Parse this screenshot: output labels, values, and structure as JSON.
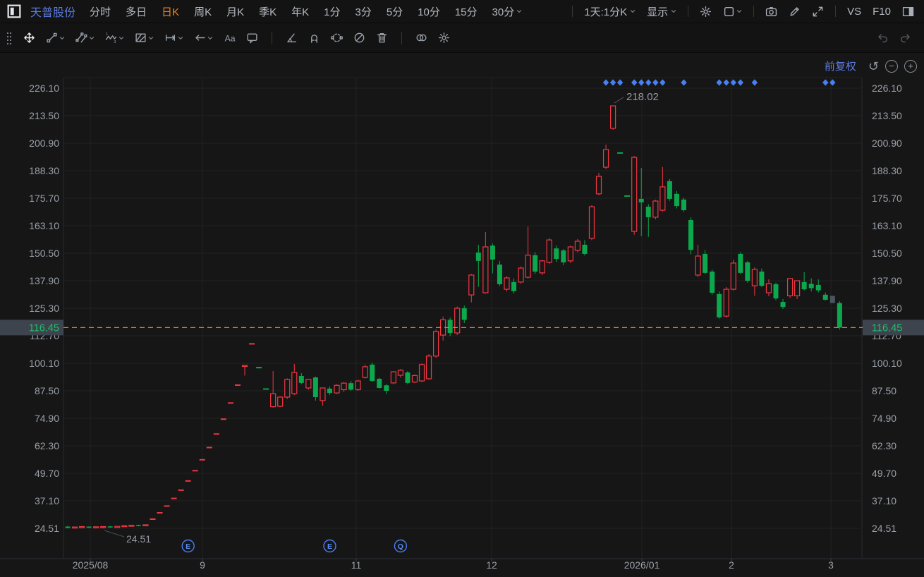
{
  "header": {
    "stock_name": "天普股份",
    "tabs": [
      {
        "label": "分时"
      },
      {
        "label": "多日"
      },
      {
        "label": "日K",
        "active": true
      },
      {
        "label": "周K"
      },
      {
        "label": "月K"
      },
      {
        "label": "季K"
      },
      {
        "label": "年K"
      },
      {
        "label": "1分"
      },
      {
        "label": "3分"
      },
      {
        "label": "5分"
      },
      {
        "label": "10分"
      },
      {
        "label": "15分"
      },
      {
        "label": "30分",
        "chevron": true
      }
    ],
    "right_controls": [
      {
        "type": "divider"
      },
      {
        "type": "text",
        "label": "1天:1分K",
        "chevron": true,
        "name": "interval-selector"
      },
      {
        "type": "text",
        "label": "显示",
        "chevron": true,
        "name": "display-menu"
      },
      {
        "type": "divider"
      },
      {
        "type": "icon",
        "icon": "gear",
        "name": "settings-icon"
      },
      {
        "type": "icon",
        "icon": "layout",
        "chevron": true,
        "name": "layout-icon"
      },
      {
        "type": "divider"
      },
      {
        "type": "icon",
        "icon": "camera",
        "name": "screenshot-icon"
      },
      {
        "type": "icon",
        "icon": "pencil",
        "name": "edit-icon"
      },
      {
        "type": "icon",
        "icon": "expand",
        "name": "fullscreen-icon"
      },
      {
        "type": "divider"
      },
      {
        "type": "text",
        "label": "VS",
        "name": "vs-button"
      },
      {
        "type": "text",
        "label": "F10",
        "name": "f10-button"
      },
      {
        "type": "icon",
        "icon": "panel-right",
        "name": "right-panel-toggle-icon"
      }
    ]
  },
  "drawing_toolbar": {
    "tools": [
      {
        "icon": "grip",
        "name": "toolbar-grip"
      },
      {
        "icon": "move",
        "name": "move-tool",
        "active": true
      },
      {
        "icon": "line",
        "name": "trend-line-tool",
        "chevron": true
      },
      {
        "icon": "channel",
        "name": "channel-tool",
        "chevron": true
      },
      {
        "icon": "wave",
        "name": "wave-tool",
        "chevron": true
      },
      {
        "icon": "pattern",
        "name": "pattern-tool",
        "chevron": true
      },
      {
        "icon": "ruler",
        "name": "measure-tool",
        "chevron": true
      },
      {
        "icon": "arrow",
        "name": "arrow-tool",
        "chevron": true
      },
      {
        "icon": "text",
        "name": "text-tool"
      },
      {
        "icon": "comment",
        "name": "comment-tool"
      },
      {
        "type": "divider"
      },
      {
        "icon": "angle",
        "name": "angle-tool"
      },
      {
        "icon": "magnet",
        "name": "magnet-tool"
      },
      {
        "icon": "select",
        "name": "selection-tool"
      },
      {
        "icon": "hide",
        "name": "hide-drawings-tool"
      },
      {
        "icon": "trash",
        "name": "delete-drawings-tool"
      },
      {
        "type": "divider"
      },
      {
        "icon": "compare",
        "name": "compare-tool"
      },
      {
        "icon": "gear",
        "name": "drawing-settings-tool"
      },
      {
        "type": "spacer"
      },
      {
        "icon": "undo",
        "name": "undo-icon",
        "disabled": true
      },
      {
        "icon": "redo",
        "name": "redo-icon",
        "disabled": true
      }
    ]
  },
  "chart": {
    "adjust_label": "前复权"
  },
  "colors": {
    "up": "#f23742",
    "down": "#0ba84e",
    "neutral": "#4b545f",
    "price_line": "#f57b20",
    "badge_bg": "#3d444e",
    "badge_text": "#21c06a",
    "accent_blue": "#5b7ce2",
    "active_tab": "#ff8000",
    "marker_blue": "#4880f2",
    "axis_text": "#9aa0a8",
    "grid": "#212121",
    "annotation": "#949aa2"
  },
  "chart_data": {
    "type": "candlestick",
    "title": "天普股份 日K 前复权",
    "current_price": 116.45,
    "current_price_label": "116.45",
    "high_annotation": "218.02",
    "low_annotation": "24.51",
    "y_ticks": [
      "226.10",
      "213.50",
      "200.90",
      "188.30",
      "175.70",
      "163.10",
      "150.50",
      "137.90",
      "125.30",
      "112.70",
      "100.10",
      "87.50",
      "74.90",
      "62.30",
      "49.70",
      "37.10",
      "24.51"
    ],
    "price_top": 226.1,
    "price_step": 12.6,
    "x_ticks": [
      {
        "label": "2025/08",
        "x": 128
      },
      {
        "label": "9",
        "x": 287
      },
      {
        "label": "11",
        "x": 505
      },
      {
        "label": "12",
        "x": 697
      },
      {
        "label": "2026/01",
        "x": 910
      },
      {
        "label": "2",
        "x": 1037
      },
      {
        "label": "3",
        "x": 1178
      }
    ],
    "event_markers": [
      {
        "index": 17,
        "label": "E"
      },
      {
        "index": 37,
        "label": "E"
      },
      {
        "index": 47,
        "label": "Q"
      }
    ],
    "diamond_marker_indices": [
      76,
      77,
      78,
      80,
      81,
      82,
      83,
      84,
      87,
      92,
      93,
      94,
      95,
      97,
      107,
      108
    ],
    "candles": [
      [
        25.3,
        25.6,
        24.5,
        24.7,
        "d"
      ],
      [
        24.7,
        25.2,
        24.4,
        25.1,
        "u"
      ],
      [
        24.9,
        25.5,
        24.7,
        25.3,
        "u"
      ],
      [
        25.3,
        25.4,
        24.6,
        24.8,
        "d"
      ],
      [
        24.8,
        25.3,
        24.6,
        25.2,
        "u"
      ],
      [
        25.0,
        25.4,
        24.51,
        25.3,
        "u"
      ],
      [
        25.4,
        25.5,
        24.8,
        24.9,
        "d"
      ],
      [
        24.9,
        25.5,
        24.8,
        25.4,
        "u"
      ],
      [
        25.4,
        25.9,
        25.2,
        25.7,
        "u"
      ],
      [
        25.6,
        26.1,
        25.3,
        25.9,
        "u"
      ],
      [
        26.0,
        26.2,
        25.4,
        25.6,
        "d"
      ],
      [
        25.7,
        26.3,
        25.5,
        26.1,
        "u"
      ],
      [
        28.7,
        28.7,
        28.7,
        28.7,
        "u"
      ],
      [
        31.6,
        31.6,
        31.6,
        31.6,
        "u"
      ],
      [
        34.7,
        34.7,
        34.7,
        34.7,
        "u"
      ],
      [
        38.2,
        38.2,
        38.2,
        38.2,
        "u"
      ],
      [
        42.0,
        42.0,
        42.0,
        42.0,
        "u"
      ],
      [
        46.2,
        46.2,
        46.2,
        46.2,
        "u"
      ],
      [
        50.9,
        50.9,
        50.9,
        50.9,
        "u"
      ],
      [
        55.9,
        55.9,
        55.9,
        55.9,
        "u"
      ],
      [
        61.5,
        61.5,
        61.5,
        61.5,
        "u"
      ],
      [
        67.7,
        67.7,
        67.7,
        67.7,
        "u"
      ],
      [
        74.5,
        74.5,
        74.5,
        74.5,
        "u"
      ],
      [
        81.9,
        81.9,
        81.9,
        81.9,
        "u"
      ],
      [
        90.1,
        90.1,
        90.1,
        90.1,
        "u"
      ],
      [
        99.1,
        99.1,
        94.5,
        99.1,
        "u"
      ],
      [
        109.0,
        109.0,
        109.0,
        109.0,
        "u"
      ],
      [
        98.1,
        98.1,
        98.1,
        98.1,
        "d"
      ],
      [
        88.3,
        88.3,
        88.3,
        88.3,
        "d"
      ],
      [
        80.2,
        96.5,
        79.8,
        86.2,
        "u"
      ],
      [
        80.4,
        85.0,
        80.0,
        84.6,
        "u"
      ],
      [
        84.6,
        93.2,
        83.8,
        92.7,
        "u"
      ],
      [
        86.2,
        99.8,
        85.5,
        95.9,
        "u"
      ],
      [
        94.3,
        95.6,
        90.5,
        91.1,
        "d"
      ],
      [
        88.8,
        93.0,
        88.0,
        92.7,
        "u"
      ],
      [
        93.6,
        94.0,
        83.0,
        84.6,
        "d"
      ],
      [
        83.0,
        89.0,
        80.7,
        88.8,
        "u"
      ],
      [
        88.5,
        89.5,
        85.5,
        86.5,
        "d"
      ],
      [
        86.5,
        90.5,
        86.0,
        90.0,
        "u"
      ],
      [
        88.0,
        91.5,
        87.0,
        91.0,
        "u"
      ],
      [
        91.0,
        92.0,
        87.5,
        88.0,
        "d"
      ],
      [
        88.0,
        92.5,
        87.5,
        92.0,
        "u"
      ],
      [
        93.6,
        99.5,
        93.0,
        98.5,
        "u"
      ],
      [
        99.5,
        100.5,
        91.5,
        92.0,
        "d"
      ],
      [
        93.0,
        93.5,
        88.5,
        88.8,
        "d"
      ],
      [
        90.0,
        90.5,
        86.0,
        87.5,
        "d"
      ],
      [
        91.1,
        96.5,
        90.5,
        96.2,
        "u"
      ],
      [
        94.6,
        97.5,
        93.5,
        96.9,
        "u"
      ],
      [
        95.9,
        96.5,
        90.5,
        91.1,
        "d"
      ],
      [
        91.5,
        95.0,
        91.0,
        94.5,
        "u"
      ],
      [
        92.0,
        100.0,
        91.5,
        99.5,
        "u"
      ],
      [
        93.0,
        104.3,
        92.5,
        103.4,
        "u"
      ],
      [
        103.4,
        115.5,
        102.5,
        114.7,
        "u"
      ],
      [
        113.0,
        121.5,
        110.5,
        120.0,
        "u"
      ],
      [
        120.0,
        121.0,
        112.5,
        114.0,
        "d"
      ],
      [
        114.0,
        126.1,
        113.0,
        125.3,
        "u"
      ],
      [
        125.3,
        126.5,
        118.5,
        120.0,
        "d"
      ],
      [
        131.4,
        141.0,
        128.0,
        140.5,
        "u"
      ],
      [
        150.8,
        154.4,
        135.1,
        147.0,
        "d"
      ],
      [
        132.4,
        160.2,
        132.0,
        153.4,
        "u"
      ],
      [
        154.0,
        155.0,
        141.2,
        147.6,
        "d"
      ],
      [
        145.3,
        147.0,
        135.5,
        136.3,
        "d"
      ],
      [
        134.0,
        140.0,
        133.0,
        139.2,
        "u"
      ],
      [
        137.3,
        139.0,
        132.0,
        133.1,
        "d"
      ],
      [
        137.3,
        144.5,
        136.5,
        143.7,
        "u"
      ],
      [
        139.5,
        162.8,
        139.0,
        149.6,
        "u"
      ],
      [
        149.6,
        151.0,
        141.0,
        142.1,
        "d"
      ],
      [
        141.5,
        147.5,
        140.5,
        147.0,
        "u"
      ],
      [
        146.3,
        157.5,
        145.5,
        156.6,
        "u"
      ],
      [
        152.7,
        154.0,
        146.5,
        147.9,
        "d"
      ],
      [
        151.8,
        152.5,
        145.0,
        146.3,
        "d"
      ],
      [
        147.0,
        154.0,
        146.0,
        153.4,
        "u"
      ],
      [
        151.8,
        157.0,
        151.0,
        156.0,
        "u"
      ],
      [
        154.4,
        156.5,
        149.5,
        150.2,
        "d"
      ],
      [
        157.3,
        172.5,
        156.5,
        171.8,
        "u"
      ],
      [
        177.7,
        187.3,
        177.0,
        185.7,
        "u"
      ],
      [
        189.9,
        200.3,
        189.0,
        198.0,
        "u"
      ],
      [
        207.7,
        218.02,
        207.0,
        218.02,
        "u"
      ],
      [
        196.4,
        196.4,
        196.4,
        196.4,
        "d"
      ],
      [
        176.7,
        176.7,
        176.7,
        176.7,
        "d"
      ],
      [
        160.5,
        195.0,
        159.0,
        194.4,
        "u"
      ],
      [
        175.4,
        189.6,
        158.3,
        173.8,
        "d"
      ],
      [
        171.8,
        173.0,
        158.0,
        167.0,
        "d"
      ],
      [
        167.0,
        175.0,
        166.0,
        174.4,
        "u"
      ],
      [
        170.2,
        190.0,
        169.5,
        180.9,
        "u"
      ],
      [
        183.5,
        184.5,
        174.5,
        175.4,
        "d"
      ],
      [
        177.7,
        179.0,
        171.0,
        172.1,
        "d"
      ],
      [
        175.1,
        176.0,
        169.5,
        170.2,
        "d"
      ],
      [
        165.7,
        167.0,
        150.0,
        152.0,
        "d"
      ],
      [
        140.5,
        154.4,
        139.5,
        149.2,
        "u"
      ],
      [
        150.2,
        152.0,
        141.0,
        141.5,
        "d"
      ],
      [
        142.1,
        143.0,
        131.5,
        132.4,
        "d"
      ],
      [
        131.8,
        133.0,
        120.5,
        121.1,
        "d"
      ],
      [
        121.7,
        135.0,
        121.0,
        134.0,
        "u"
      ],
      [
        134.0,
        147.6,
        133.5,
        146.0,
        "u"
      ],
      [
        150.2,
        151.0,
        141.0,
        141.5,
        "d"
      ],
      [
        146.3,
        147.0,
        137.0,
        137.9,
        "d"
      ],
      [
        135.6,
        144.0,
        131.0,
        143.1,
        "u"
      ],
      [
        142.1,
        143.5,
        135.0,
        135.6,
        "d"
      ],
      [
        132.4,
        138.5,
        130.8,
        136.6,
        "u"
      ],
      [
        136.3,
        137.0,
        129.0,
        129.8,
        "d"
      ],
      [
        128.2,
        129.5,
        125.0,
        125.9,
        "d"
      ],
      [
        131.0,
        139.0,
        130.0,
        138.9,
        "u"
      ],
      [
        131.0,
        138.0,
        129.5,
        137.9,
        "u"
      ],
      [
        137.3,
        141.8,
        133.5,
        134.0,
        "d"
      ],
      [
        136.5,
        139.0,
        133.0,
        134.5,
        "d"
      ],
      [
        136.0,
        138.5,
        132.5,
        133.5,
        "d"
      ],
      [
        131.5,
        132.5,
        128.8,
        129.2,
        "d"
      ],
      [
        131.0,
        131.0,
        127.7,
        127.7,
        "n"
      ],
      [
        127.7,
        128.5,
        115.5,
        116.45,
        "d"
      ]
    ]
  }
}
